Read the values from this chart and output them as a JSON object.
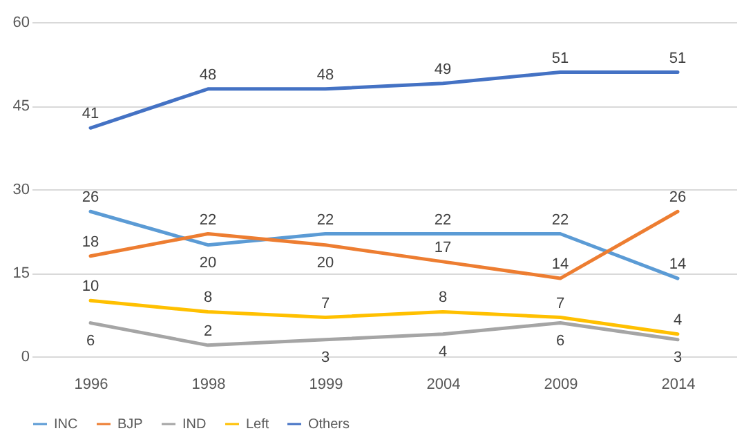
{
  "chart_data": {
    "type": "line",
    "categories": [
      "1996",
      "1998",
      "1999",
      "2004",
      "2009",
      "2014"
    ],
    "series": [
      {
        "name": "INC",
        "color": "#5b9bd5",
        "values": [
          26,
          20,
          22,
          22,
          22,
          14
        ]
      },
      {
        "name": "BJP",
        "color": "#ed7d31",
        "values": [
          18,
          22,
          20,
          17,
          14,
          26
        ]
      },
      {
        "name": "IND",
        "color": "#a5a5a5",
        "values": [
          6,
          2,
          3,
          4,
          6,
          3
        ]
      },
      {
        "name": "Left",
        "color": "#ffc000",
        "values": [
          10,
          8,
          7,
          8,
          7,
          4
        ]
      },
      {
        "name": "Others",
        "color": "#4472c4",
        "values": [
          41,
          48,
          48,
          49,
          51,
          51
        ]
      }
    ],
    "ylim": [
      0,
      60
    ],
    "yticks": [
      0,
      15,
      30,
      45,
      60
    ],
    "grid": "y",
    "legend": "bottom",
    "marker": "none",
    "line_style": "solid",
    "data_labels": true
  }
}
